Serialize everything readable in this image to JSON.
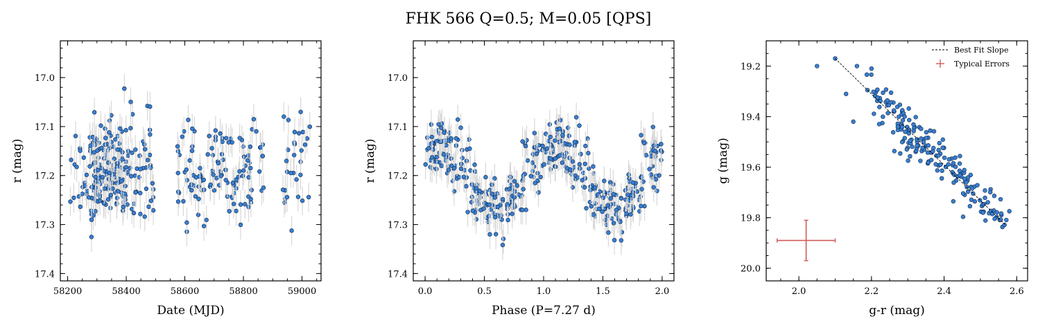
{
  "figure": {
    "title": "FHK 566  Q=0.5; M=0.05 [QPS]"
  },
  "chart_data": [
    {
      "type": "scatter",
      "xlabel": "Date (MJD)",
      "ylabel": "r (mag)",
      "xlim": [
        58175,
        59065
      ],
      "ylim": [
        17.415,
        16.925
      ],
      "xticks": [
        58200,
        58400,
        58600,
        58800,
        59000
      ],
      "yticks": [
        17.0,
        17.1,
        17.2,
        17.3,
        17.4
      ],
      "ytick_labels": [
        "17.0",
        "17.1",
        "17.2",
        "17.3",
        "17.4"
      ],
      "grid": false,
      "error_bars": "light gray, ~0.03 mag",
      "point_color": "#3a7fd1",
      "observation_windows": [
        [
          58205,
          58495
        ],
        [
          58575,
          58870
        ],
        [
          58935,
          59035
        ]
      ]
    },
    {
      "type": "scatter",
      "xlabel": "Phase (P=7.27 d)",
      "ylabel": "r (mag)",
      "xlim": [
        -0.1,
        2.1
      ],
      "ylim": [
        17.415,
        16.925
      ],
      "xticks": [
        0.0,
        0.5,
        1.0,
        1.5,
        2.0
      ],
      "xtick_labels": [
        "0.0",
        "0.5",
        "1.0",
        "1.5",
        "2.0"
      ],
      "yticks": [
        17.0,
        17.1,
        17.2,
        17.3,
        17.4
      ],
      "ytick_labels": [
        "17.0",
        "17.1",
        "17.2",
        "17.3",
        "17.4"
      ],
      "grid": false,
      "period_days": 7.27,
      "phased_shape": "quasi-periodic; brightest near phase 0.1, faintest near phase 0.6"
    },
    {
      "type": "scatter",
      "xlabel": "g-r (mag)",
      "ylabel": "g (mag)",
      "xlim": [
        1.91,
        2.63
      ],
      "ylim": [
        20.05,
        19.1
      ],
      "xticks": [
        2.0,
        2.2,
        2.4,
        2.6
      ],
      "xtick_labels": [
        "2.0",
        "2.2",
        "2.4",
        "2.6"
      ],
      "yticks": [
        19.2,
        19.4,
        19.6,
        19.8,
        20.0
      ],
      "ytick_labels": [
        "19.2",
        "19.4",
        "19.6",
        "19.8",
        "20.0"
      ],
      "grid": false,
      "legend_position": "top-right",
      "legend": [
        "Best Fit Slope",
        "Typical Errors"
      ],
      "best_fit_line": {
        "x": [
          2.1,
          2.57
        ],
        "y": [
          19.17,
          19.83
        ]
      },
      "typical_errors": {
        "x": 2.02,
        "y": 19.89,
        "xerr": 0.08,
        "yerr": 0.08
      },
      "error_color": "#d05a5a"
    }
  ]
}
